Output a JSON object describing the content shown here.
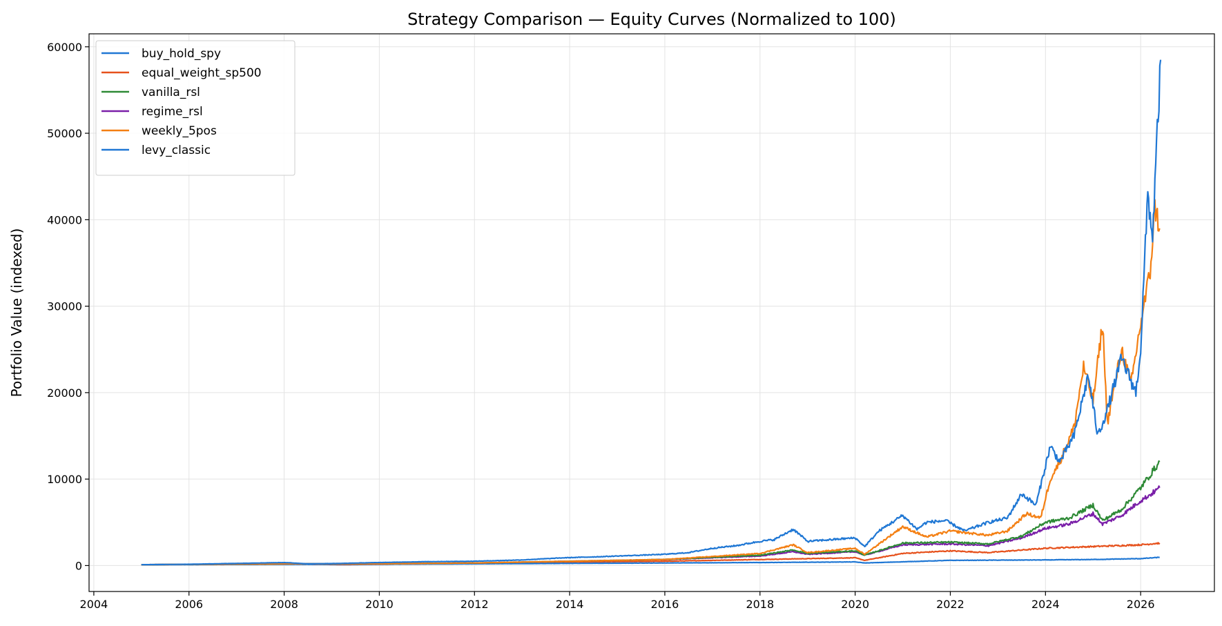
{
  "chart_data": {
    "type": "line",
    "title": "Strategy Comparison — Equity Curves (Normalized to 100)",
    "xlabel": "",
    "ylabel": "Portfolio Value (indexed)",
    "x_type": "year",
    "xlim": [
      2003.9,
      2027.55
    ],
    "ylim": [
      -3000,
      61500
    ],
    "x_ticks": [
      2004,
      2006,
      2008,
      2010,
      2012,
      2014,
      2016,
      2018,
      2020,
      2022,
      2024,
      2026
    ],
    "y_ticks": [
      0,
      10000,
      20000,
      30000,
      40000,
      50000,
      60000
    ],
    "grid": true,
    "legend_position": "upper-left",
    "series": [
      {
        "name": "buy_hold_spy",
        "color": "#1f77d4",
        "x": [
          2005.0,
          2006.0,
          2007.0,
          2008.0,
          2008.5,
          2009.2,
          2010.0,
          2011.0,
          2012.0,
          2013.0,
          2013.9,
          2014.5,
          2015.0,
          2015.5,
          2016.0,
          2016.5,
          2017.0,
          2017.5,
          2018.0,
          2018.3,
          2018.7,
          2019.0,
          2019.5,
          2020.0,
          2020.2,
          2020.5,
          2021.0,
          2021.3,
          2021.5,
          2021.9,
          2022.3,
          2022.8,
          2023.2,
          2023.5,
          2023.8,
          2024.1,
          2024.3,
          2024.6,
          2024.9,
          2025.1,
          2025.3,
          2025.6,
          2025.9,
          2026.0,
          2026.15,
          2026.25,
          2026.35,
          2026.42
        ],
        "values": [
          100,
          150,
          250,
          350,
          200,
          250,
          350,
          450,
          500,
          650,
          900,
          1000,
          1100,
          1200,
          1300,
          1500,
          2000,
          2300,
          2800,
          3000,
          4200,
          2800,
          3000,
          3200,
          2200,
          4000,
          5800,
          4200,
          5000,
          5200,
          4000,
          5000,
          5500,
          8300,
          7000,
          13800,
          12000,
          15000,
          22000,
          15000,
          18000,
          24000,
          20000,
          25000,
          43000,
          38000,
          50000,
          58500
        ]
      },
      {
        "name": "equal_weight_sp500",
        "color": "#e6511c",
        "x": [
          2005.0,
          2008.0,
          2009.2,
          2012.0,
          2014.0,
          2016.0,
          2018.0,
          2020.0,
          2020.2,
          2021.0,
          2022.0,
          2022.8,
          2024.0,
          2025.0,
          2026.0,
          2026.4
        ],
        "values": [
          100,
          200,
          100,
          250,
          400,
          500,
          700,
          900,
          600,
          1400,
          1700,
          1500,
          2000,
          2200,
          2400,
          2600
        ]
      },
      {
        "name": "vanilla_rsl",
        "color": "#2e8a36",
        "x": [
          2005.0,
          2008.0,
          2010.0,
          2012.0,
          2014.0,
          2016.0,
          2018.0,
          2018.7,
          2019.0,
          2020.0,
          2020.2,
          2021.0,
          2022.0,
          2022.8,
          2023.5,
          2024.0,
          2024.5,
          2025.0,
          2025.2,
          2025.6,
          2026.0,
          2026.2,
          2026.4
        ],
        "values": [
          100,
          200,
          200,
          300,
          500,
          700,
          1200,
          1800,
          1400,
          1700,
          1200,
          2600,
          2700,
          2500,
          3400,
          5000,
          5500,
          7000,
          5200,
          6500,
          9000,
          10500,
          12000
        ]
      },
      {
        "name": "regime_rsl",
        "color": "#7a1fa8",
        "x": [
          2005.0,
          2008.0,
          2010.0,
          2012.0,
          2014.0,
          2016.0,
          2018.0,
          2018.7,
          2019.0,
          2020.0,
          2020.2,
          2021.0,
          2022.0,
          2022.8,
          2023.5,
          2024.0,
          2024.5,
          2025.0,
          2025.2,
          2025.6,
          2026.0,
          2026.2,
          2026.4
        ],
        "values": [
          100,
          200,
          200,
          300,
          500,
          700,
          1100,
          1600,
          1300,
          1600,
          1200,
          2400,
          2500,
          2300,
          3200,
          4300,
          4800,
          6000,
          4800,
          5800,
          7500,
          8200,
          9000
        ]
      },
      {
        "name": "weekly_5pos",
        "color": "#f47f12",
        "x": [
          2005.0,
          2008.0,
          2010.0,
          2012.0,
          2014.0,
          2016.0,
          2018.0,
          2018.7,
          2019.0,
          2020.0,
          2020.2,
          2021.0,
          2021.5,
          2022.0,
          2022.8,
          2023.2,
          2023.6,
          2023.9,
          2024.1,
          2024.3,
          2024.6,
          2024.8,
          2025.0,
          2025.2,
          2025.3,
          2025.6,
          2025.8,
          2026.0,
          2026.2,
          2026.3,
          2026.4
        ],
        "values": [
          100,
          200,
          200,
          300,
          500,
          700,
          1400,
          2400,
          1500,
          2000,
          1300,
          4500,
          3300,
          4000,
          3500,
          4000,
          6000,
          5500,
          10000,
          12000,
          16000,
          23000,
          19000,
          28000,
          16500,
          25000,
          21000,
          28000,
          34000,
          41500,
          39000
        ]
      },
      {
        "name": "levy_classic",
        "color": "#1f77d4",
        "x": [
          2005.0,
          2010.0,
          2014.0,
          2018.0,
          2020.0,
          2020.2,
          2022.0,
          2024.0,
          2025.0,
          2025.5,
          2026.0,
          2026.4
        ],
        "values": [
          100,
          150,
          250,
          350,
          420,
          300,
          600,
          650,
          700,
          750,
          800,
          950
        ]
      }
    ]
  }
}
